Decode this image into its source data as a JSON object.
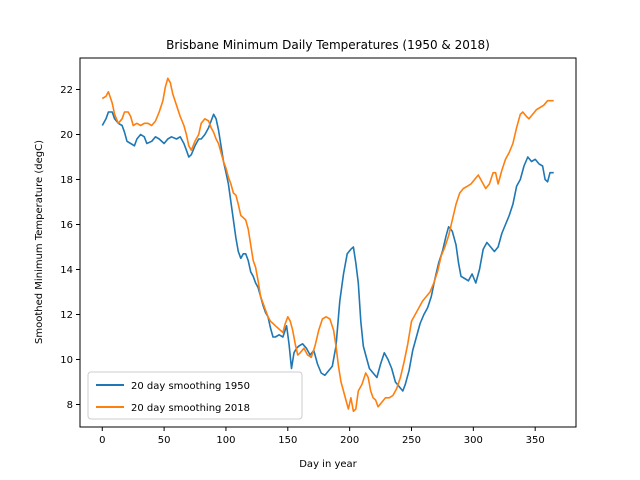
{
  "chart_data": {
    "type": "line",
    "title": "Brisbane Minimum Daily Temperatures (1950 & 2018)",
    "xlabel": "Day in year",
    "ylabel": "Smoothed Minimum Temperature (degC)",
    "xlim": [
      -18,
      383
    ],
    "ylim": [
      7.0,
      23.4
    ],
    "xticks": [
      0,
      50,
      100,
      150,
      200,
      250,
      300,
      350
    ],
    "yticks": [
      8,
      10,
      12,
      14,
      16,
      18,
      20,
      22
    ],
    "grid": false,
    "legend_position": "lower-left",
    "series": [
      {
        "name": "20 day smoothing 1950",
        "color": "#1f77b4",
        "points": [
          [
            0,
            20.4
          ],
          [
            3,
            20.7
          ],
          [
            5,
            21.0
          ],
          [
            8,
            21.0
          ],
          [
            10,
            20.7
          ],
          [
            13,
            20.5
          ],
          [
            16,
            20.4
          ],
          [
            18,
            20.1
          ],
          [
            20,
            19.7
          ],
          [
            23,
            19.6
          ],
          [
            26,
            19.5
          ],
          [
            28,
            19.8
          ],
          [
            31,
            20.0
          ],
          [
            34,
            19.9
          ],
          [
            36,
            19.6
          ],
          [
            40,
            19.7
          ],
          [
            43,
            19.9
          ],
          [
            46,
            19.8
          ],
          [
            50,
            19.6
          ],
          [
            53,
            19.8
          ],
          [
            56,
            19.9
          ],
          [
            60,
            19.8
          ],
          [
            63,
            19.9
          ],
          [
            66,
            19.6
          ],
          [
            68,
            19.3
          ],
          [
            70,
            19.0
          ],
          [
            72,
            19.1
          ],
          [
            75,
            19.5
          ],
          [
            78,
            19.8
          ],
          [
            80,
            19.8
          ],
          [
            83,
            20.0
          ],
          [
            86,
            20.3
          ],
          [
            88,
            20.6
          ],
          [
            90,
            20.9
          ],
          [
            92,
            20.7
          ],
          [
            94,
            20.2
          ],
          [
            96,
            19.5
          ],
          [
            98,
            18.8
          ],
          [
            100,
            18.3
          ],
          [
            102,
            17.8
          ],
          [
            104,
            17.0
          ],
          [
            106,
            16.2
          ],
          [
            108,
            15.4
          ],
          [
            110,
            14.8
          ],
          [
            112,
            14.5
          ],
          [
            114,
            14.7
          ],
          [
            116,
            14.7
          ],
          [
            118,
            14.4
          ],
          [
            120,
            13.9
          ],
          [
            122,
            13.7
          ],
          [
            124,
            13.4
          ],
          [
            126,
            13.2
          ],
          [
            128,
            12.8
          ],
          [
            130,
            12.4
          ],
          [
            132,
            12.1
          ],
          [
            134,
            11.9
          ],
          [
            136,
            11.4
          ],
          [
            138,
            11.0
          ],
          [
            140,
            11.0
          ],
          [
            143,
            11.1
          ],
          [
            146,
            11.0
          ],
          [
            149,
            11.5
          ],
          [
            151,
            10.7
          ],
          [
            153,
            9.6
          ],
          [
            155,
            10.3
          ],
          [
            157,
            10.5
          ],
          [
            159,
            10.6
          ],
          [
            162,
            10.7
          ],
          [
            165,
            10.5
          ],
          [
            168,
            10.2
          ],
          [
            171,
            10.4
          ],
          [
            174,
            9.8
          ],
          [
            177,
            9.4
          ],
          [
            180,
            9.3
          ],
          [
            183,
            9.5
          ],
          [
            186,
            9.7
          ],
          [
            189,
            10.6
          ],
          [
            192,
            12.6
          ],
          [
            195,
            13.8
          ],
          [
            198,
            14.7
          ],
          [
            201,
            14.9
          ],
          [
            203,
            15.0
          ],
          [
            205,
            14.3
          ],
          [
            207,
            13.4
          ],
          [
            209,
            11.7
          ],
          [
            211,
            10.6
          ],
          [
            213,
            10.2
          ],
          [
            216,
            9.6
          ],
          [
            219,
            9.4
          ],
          [
            222,
            9.2
          ],
          [
            225,
            9.8
          ],
          [
            228,
            10.3
          ],
          [
            231,
            10.0
          ],
          [
            234,
            9.6
          ],
          [
            237,
            9.0
          ],
          [
            240,
            8.8
          ],
          [
            243,
            8.6
          ],
          [
            245,
            8.9
          ],
          [
            248,
            9.5
          ],
          [
            251,
            10.4
          ],
          [
            254,
            11.0
          ],
          [
            257,
            11.6
          ],
          [
            260,
            12.0
          ],
          [
            263,
            12.3
          ],
          [
            266,
            12.8
          ],
          [
            269,
            13.6
          ],
          [
            272,
            14.3
          ],
          [
            275,
            14.8
          ],
          [
            278,
            15.5
          ],
          [
            280,
            15.9
          ],
          [
            283,
            15.7
          ],
          [
            286,
            15.1
          ],
          [
            288,
            14.3
          ],
          [
            290,
            13.7
          ],
          [
            293,
            13.6
          ],
          [
            296,
            13.5
          ],
          [
            299,
            13.8
          ],
          [
            302,
            13.4
          ],
          [
            305,
            14.0
          ],
          [
            308,
            14.9
          ],
          [
            311,
            15.2
          ],
          [
            314,
            15.0
          ],
          [
            317,
            14.8
          ],
          [
            320,
            15.0
          ],
          [
            323,
            15.6
          ],
          [
            326,
            16.0
          ],
          [
            329,
            16.4
          ],
          [
            332,
            16.9
          ],
          [
            335,
            17.7
          ],
          [
            338,
            18.0
          ],
          [
            341,
            18.6
          ],
          [
            344,
            19.0
          ],
          [
            347,
            18.8
          ],
          [
            350,
            18.9
          ],
          [
            353,
            18.7
          ],
          [
            356,
            18.6
          ],
          [
            358,
            18.0
          ],
          [
            360,
            17.9
          ],
          [
            362,
            18.3
          ],
          [
            365,
            18.3
          ]
        ]
      },
      {
        "name": "20 day smoothing 2018",
        "color": "#ff7f0e",
        "points": [
          [
            0,
            21.6
          ],
          [
            3,
            21.7
          ],
          [
            5,
            21.9
          ],
          [
            8,
            21.4
          ],
          [
            10,
            20.9
          ],
          [
            13,
            20.5
          ],
          [
            16,
            20.7
          ],
          [
            18,
            21.0
          ],
          [
            21,
            21.0
          ],
          [
            23,
            20.8
          ],
          [
            25,
            20.4
          ],
          [
            28,
            20.5
          ],
          [
            31,
            20.4
          ],
          [
            34,
            20.5
          ],
          [
            37,
            20.5
          ],
          [
            40,
            20.4
          ],
          [
            43,
            20.6
          ],
          [
            46,
            21.0
          ],
          [
            49,
            21.5
          ],
          [
            51,
            22.1
          ],
          [
            53,
            22.5
          ],
          [
            55,
            22.3
          ],
          [
            57,
            21.8
          ],
          [
            60,
            21.3
          ],
          [
            63,
            20.8
          ],
          [
            66,
            20.4
          ],
          [
            68,
            20.0
          ],
          [
            70,
            19.5
          ],
          [
            72,
            19.3
          ],
          [
            75,
            19.7
          ],
          [
            78,
            20.0
          ],
          [
            80,
            20.5
          ],
          [
            83,
            20.7
          ],
          [
            86,
            20.6
          ],
          [
            88,
            20.3
          ],
          [
            90,
            20.1
          ],
          [
            92,
            19.8
          ],
          [
            94,
            19.6
          ],
          [
            96,
            19.2
          ],
          [
            98,
            18.8
          ],
          [
            100,
            18.5
          ],
          [
            102,
            18.1
          ],
          [
            104,
            17.8
          ],
          [
            106,
            17.4
          ],
          [
            108,
            17.3
          ],
          [
            110,
            16.9
          ],
          [
            112,
            16.4
          ],
          [
            114,
            16.3
          ],
          [
            116,
            16.2
          ],
          [
            118,
            15.8
          ],
          [
            120,
            15.1
          ],
          [
            122,
            14.4
          ],
          [
            124,
            14.1
          ],
          [
            126,
            13.5
          ],
          [
            128,
            12.8
          ],
          [
            130,
            12.5
          ],
          [
            132,
            12.2
          ],
          [
            134,
            11.9
          ],
          [
            136,
            11.7
          ],
          [
            138,
            11.6
          ],
          [
            140,
            11.5
          ],
          [
            142,
            11.4
          ],
          [
            144,
            11.3
          ],
          [
            146,
            11.2
          ],
          [
            148,
            11.6
          ],
          [
            150,
            11.9
          ],
          [
            152,
            11.7
          ],
          [
            154,
            11.3
          ],
          [
            156,
            10.7
          ],
          [
            158,
            10.2
          ],
          [
            160,
            10.3
          ],
          [
            163,
            10.5
          ],
          [
            166,
            10.2
          ],
          [
            169,
            10.1
          ],
          [
            172,
            10.6
          ],
          [
            175,
            11.3
          ],
          [
            178,
            11.8
          ],
          [
            181,
            11.9
          ],
          [
            184,
            11.8
          ],
          [
            187,
            11.3
          ],
          [
            189,
            10.6
          ],
          [
            191,
            9.7
          ],
          [
            193,
            9.0
          ],
          [
            195,
            8.6
          ],
          [
            197,
            8.2
          ],
          [
            199,
            7.8
          ],
          [
            201,
            8.3
          ],
          [
            203,
            7.7
          ],
          [
            205,
            7.8
          ],
          [
            207,
            8.6
          ],
          [
            210,
            8.9
          ],
          [
            213,
            9.4
          ],
          [
            215,
            9.2
          ],
          [
            217,
            8.6
          ],
          [
            219,
            8.3
          ],
          [
            221,
            8.2
          ],
          [
            223,
            7.9
          ],
          [
            226,
            8.1
          ],
          [
            229,
            8.3
          ],
          [
            232,
            8.3
          ],
          [
            235,
            8.4
          ],
          [
            238,
            8.7
          ],
          [
            241,
            9.2
          ],
          [
            244,
            9.9
          ],
          [
            247,
            10.7
          ],
          [
            250,
            11.7
          ],
          [
            253,
            12.0
          ],
          [
            256,
            12.3
          ],
          [
            259,
            12.6
          ],
          [
            262,
            12.8
          ],
          [
            265,
            13.0
          ],
          [
            268,
            13.4
          ],
          [
            271,
            13.9
          ],
          [
            274,
            14.6
          ],
          [
            277,
            15.0
          ],
          [
            280,
            15.5
          ],
          [
            283,
            16.2
          ],
          [
            286,
            16.9
          ],
          [
            289,
            17.4
          ],
          [
            292,
            17.6
          ],
          [
            295,
            17.7
          ],
          [
            298,
            17.8
          ],
          [
            301,
            18.0
          ],
          [
            304,
            18.2
          ],
          [
            307,
            17.9
          ],
          [
            310,
            17.6
          ],
          [
            313,
            17.8
          ],
          [
            316,
            18.3
          ],
          [
            318,
            18.3
          ],
          [
            320,
            17.8
          ],
          [
            323,
            18.4
          ],
          [
            326,
            18.9
          ],
          [
            329,
            19.2
          ],
          [
            332,
            19.6
          ],
          [
            335,
            20.3
          ],
          [
            338,
            20.9
          ],
          [
            340,
            21.0
          ],
          [
            343,
            20.8
          ],
          [
            345,
            20.7
          ],
          [
            348,
            20.9
          ],
          [
            351,
            21.1
          ],
          [
            354,
            21.2
          ],
          [
            357,
            21.3
          ],
          [
            360,
            21.5
          ],
          [
            363,
            21.5
          ],
          [
            365,
            21.5
          ]
        ]
      }
    ]
  }
}
